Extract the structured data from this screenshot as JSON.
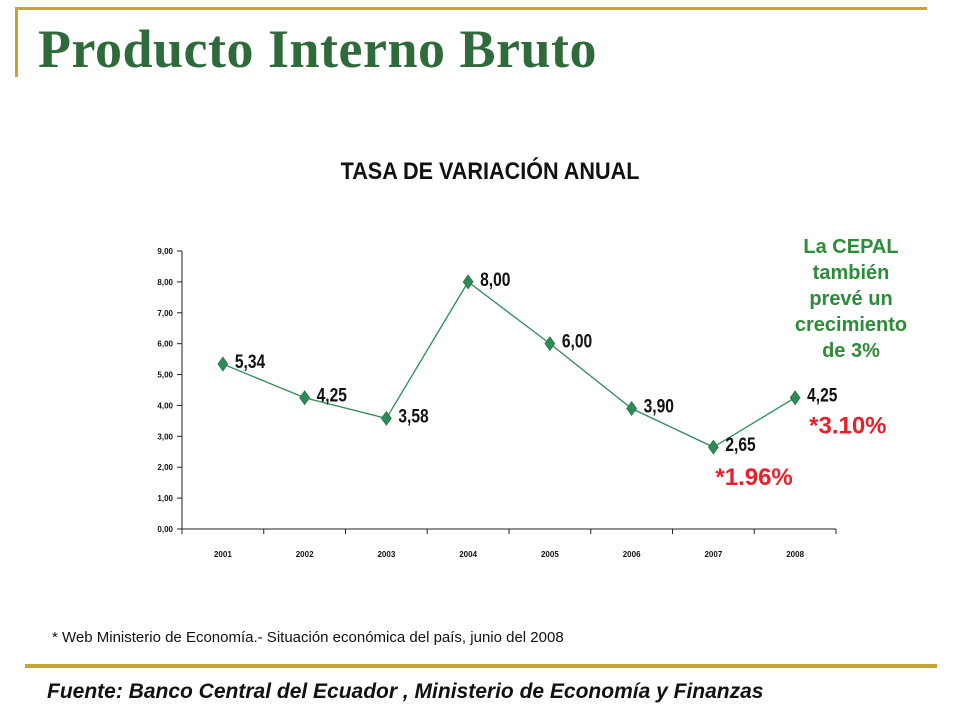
{
  "slide": {
    "title": "Producto Interno Bruto",
    "footnote": "* Web Ministerio de Economía.- Situación económica del país, junio del 2008",
    "source": "Fuente: Banco Central del Ecuador , Ministerio de Economía y Finanzas"
  },
  "note": {
    "text": "La CEPAL\ntambién\nprevé un\ncrecimiento\nde 3%",
    "color": "#2e8b3a"
  },
  "chart_data": {
    "type": "line",
    "title": "TASA DE VARIACIÓN ANUAL",
    "xlabel": "",
    "ylabel": "",
    "categories": [
      "2001",
      "2002",
      "2003",
      "2004",
      "2005",
      "2006",
      "2007",
      "2008"
    ],
    "series": [
      {
        "values": [
          5.34,
          4.25,
          3.58,
          8.0,
          6.0,
          3.9,
          2.65,
          4.25
        ],
        "labels": [
          "5,34",
          "4,25",
          "3,58",
          "8,00",
          "6,00",
          "3,90",
          "2,65",
          "4,25"
        ],
        "color": "#2e8b57"
      }
    ],
    "ylim": [
      0,
      9
    ],
    "yticks": [
      "0,00",
      "1,00",
      "2,00",
      "3,00",
      "4,00",
      "5,00",
      "6,00",
      "7,00",
      "8,00",
      "9,00"
    ],
    "grid": false,
    "annotations": [
      {
        "category": "2007",
        "text": "*1.96%",
        "color": "#e8202a"
      },
      {
        "category": "2008",
        "text": "*3.10%",
        "color": "#e8202a"
      }
    ]
  }
}
